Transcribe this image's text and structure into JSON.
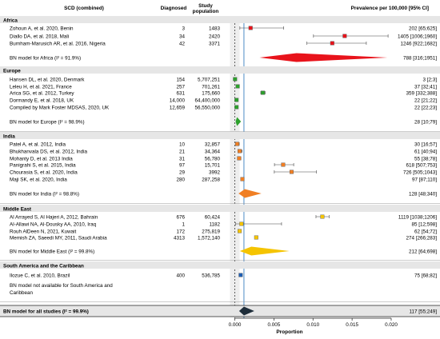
{
  "header": {
    "study": "SCD (combined)",
    "diagnosed": "Diagnosed",
    "population_l1": "Study",
    "population_l2": "population",
    "prevalence": "Prevalence per 100,000 [95% CI]"
  },
  "axis": {
    "xlabel": "Proportion",
    "ticks": [
      "0.000",
      "0.005",
      "0.010",
      "0.015",
      "0.020"
    ],
    "tick_values": [
      0,
      0.005,
      0.01,
      0.015,
      0.02
    ],
    "xlim": [
      0,
      0.02
    ]
  },
  "colors": {
    "Africa": "#e8131b",
    "Europe": "#2ca02c",
    "India": "#f07f24",
    "Middle East": "#f5c400",
    "South America and the Caribbean": "#1f5fb4",
    "Overall": "#1e2d3a",
    "overall_line": "#3a7fc0"
  },
  "chart_data": {
    "type": "forest",
    "xlabel": "Proportion",
    "xlim": [
      0,
      0.02
    ],
    "overall_estimate": 0.00117,
    "groups": [
      {
        "name": "Africa",
        "studies": [
          {
            "label": "Zohoun A, et al. 2020, Benin",
            "diagnosed": "3",
            "population": "1483",
            "est": 0.00202,
            "lo": 0.00065,
            "hi": 0.00625,
            "text": "202 [65;625]"
          },
          {
            "label": "Diallo DA, et al. 2018, Mali",
            "diagnosed": "34",
            "population": "2420",
            "est": 0.01405,
            "lo": 0.01006,
            "hi": 0.0196,
            "text": "1405 [1006;1960]"
          },
          {
            "label": "Burnham-Marusich AR, et al. 2016, Nigeria",
            "diagnosed": "42",
            "population": "3371",
            "est": 0.01246,
            "lo": 0.00922,
            "hi": 0.01682,
            "text": "1246 [922;1682]"
          }
        ],
        "model": {
          "label": "BN model for Africa (I² = 91.9%)",
          "est": 0.00788,
          "lo": 0.00316,
          "hi": 0.01951,
          "text": "788 [316;1951]"
        }
      },
      {
        "name": "Europe",
        "studies": [
          {
            "label": "Hansen DL, et al. 2020, Denmark",
            "diagnosed": "154",
            "population": "5,707,251",
            "est": 3e-05,
            "lo": 2e-05,
            "hi": 3e-05,
            "text": "3 [2;3]"
          },
          {
            "label": "Leleu H, et al. 2021, France",
            "diagnosed": "257",
            "population": "701,261",
            "est": 0.00037,
            "lo": 0.00032,
            "hi": 0.00041,
            "text": "37 [32;41]"
          },
          {
            "label": "Arica SG, et al. 2012, Turkey",
            "diagnosed": "631",
            "population": "175,660",
            "est": 0.00359,
            "lo": 0.00332,
            "hi": 0.00388,
            "text": "359 [332;388]"
          },
          {
            "label": "Dormandy E, et al. 2018, UK",
            "diagnosed": "14,000",
            "population": "64,400,000",
            "est": 0.00022,
            "lo": 0.00021,
            "hi": 0.00022,
            "text": "22 [21;22]"
          },
          {
            "label": "Compiled by Mark Foster MDSAS, 2020, UK",
            "diagnosed": "12,659",
            "population": "56,550,000",
            "est": 0.00022,
            "lo": 0.00022,
            "hi": 0.00023,
            "text": "22 [22;23]"
          }
        ],
        "model": {
          "label": "BN model for Europe (I² = 98.9%)",
          "est": 0.00028,
          "lo": 0.0001,
          "hi": 0.00079,
          "text": "28 [10;79]"
        }
      },
      {
        "name": "India",
        "studies": [
          {
            "label": "Patel A, et al. 2012, India",
            "diagnosed": "10",
            "population": "32,857",
            "est": 0.0003,
            "lo": 0.00016,
            "hi": 0.00057,
            "text": "30 [16;57]"
          },
          {
            "label": "Bhukhanvala DS, et al. 2012, India",
            "diagnosed": "21",
            "population": "34,364",
            "est": 0.00061,
            "lo": 0.0004,
            "hi": 0.00094,
            "text": "61 [40;94]"
          },
          {
            "label": "Mohanty D, et al. 2013 India",
            "diagnosed": "31",
            "population": "56,780",
            "est": 0.00055,
            "lo": 0.00038,
            "hi": 0.00078,
            "text": "55 [38;78]"
          },
          {
            "label": "Panigrahi S, et al. 2015, India",
            "diagnosed": "97",
            "population": "15,701",
            "est": 0.00618,
            "lo": 0.00507,
            "hi": 0.00753,
            "text": "618 [507;753]"
          },
          {
            "label": "Chourasia S, et al. 2020, India",
            "diagnosed": "29",
            "population": "3992",
            "est": 0.00726,
            "lo": 0.00505,
            "hi": 0.01043,
            "text": "726 [505;1043]"
          },
          {
            "label": "Maji SK, et al. 2020, India",
            "diagnosed": "280",
            "population": "287,258",
            "est": 0.00097,
            "lo": 0.00087,
            "hi": 0.0011,
            "text": "97 [87;110]"
          }
        ],
        "model": {
          "label": "BN model for India (I² = 98.8%)",
          "est": 0.00128,
          "lo": 0.00048,
          "hi": 0.0034,
          "text": "128 [48;340]"
        }
      },
      {
        "name": "Middle East",
        "studies": [
          {
            "label": "Al Arrayed S, Al Hajeri A, 2012, Bahrain",
            "diagnosed": "676",
            "population": "60,424",
            "est": 0.01119,
            "lo": 0.01038,
            "hi": 0.01206,
            "text": "1119 [1038;1206]"
          },
          {
            "label": "Al-Allawi NA, Al-Dousky AA, 2010, Iraq",
            "diagnosed": "1",
            "population": "1182",
            "est": 0.00085,
            "lo": 0.00012,
            "hi": 0.00598,
            "text": "85 [12;598]"
          },
          {
            "label": "Rouh AlDeen N, 2021, Kuwait",
            "diagnosed": "172",
            "population": "275,819",
            "est": 0.00062,
            "lo": 0.00054,
            "hi": 0.00072,
            "text": "62 [54;72]"
          },
          {
            "label": "Memish ZA, Saeedi MY, 2011, Saudi Arabia",
            "diagnosed": "4313",
            "population": "1,572,140",
            "est": 0.00274,
            "lo": 0.00266,
            "hi": 0.00283,
            "text": "274 [266;283]"
          }
        ],
        "model": {
          "label": "BN model for Middle East (I² = 99.8%)",
          "est": 0.00212,
          "lo": 0.00064,
          "hi": 0.00698,
          "text": "212 [64;698]"
        }
      },
      {
        "name": "South America and the Caribbean",
        "studies": [
          {
            "label": "Ilozue C, et al. 2010, Brazil",
            "diagnosed": "400",
            "population": "536,785",
            "est": 0.00075,
            "lo": 0.00068,
            "hi": 0.00082,
            "text": "75 [68;82]"
          }
        ],
        "note_l1": "BN model not available for South America and",
        "note_l2": "Caribbean"
      }
    ],
    "overall": {
      "label": "BN model for all studies (I² = 99.9%)",
      "est": 0.00117,
      "lo": 0.00055,
      "hi": 0.00249,
      "text": "117 [55;249]"
    }
  }
}
